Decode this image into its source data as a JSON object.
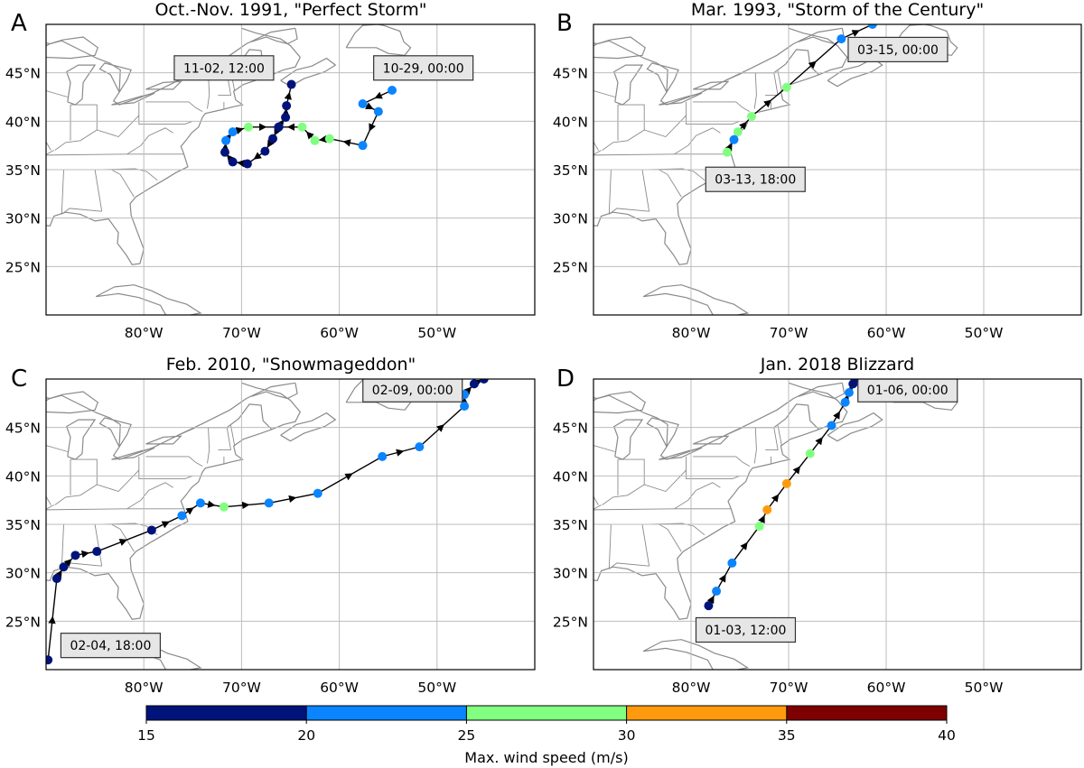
{
  "chart_data": [
    {
      "type": "scatter",
      "letter": "A",
      "title": "Oct.-Nov. 1991, \"Perfect Storm\"",
      "xlabel": "",
      "ylabel": "",
      "xlim": [
        -90,
        -40
      ],
      "ylim": [
        20,
        50
      ],
      "x_ticks": [
        -80,
        -70,
        -60,
        -50
      ],
      "x_tick_labels": [
        "80°W",
        "70°W",
        "60°W",
        "50°W"
      ],
      "y_ticks": [
        25,
        30,
        35,
        40,
        45
      ],
      "y_tick_labels": [
        "25°N",
        "30°N",
        "35°N",
        "40°N",
        "45°N"
      ],
      "grid": true,
      "track": [
        {
          "lon": -54.6,
          "lat": 43.2,
          "wind": 22
        },
        {
          "lon": -57.6,
          "lat": 41.8,
          "wind": 22
        },
        {
          "lon": -56.0,
          "lat": 41.0,
          "wind": 22
        },
        {
          "lon": -57.6,
          "lat": 37.5,
          "wind": 22
        },
        {
          "lon": -61.0,
          "lat": 38.2,
          "wind": 27
        },
        {
          "lon": -62.5,
          "lat": 38.0,
          "wind": 27
        },
        {
          "lon": -63.8,
          "lat": 39.4,
          "wind": 27
        },
        {
          "lon": -66.2,
          "lat": 39.4,
          "wind": 18
        },
        {
          "lon": -66.8,
          "lat": 38.2,
          "wind": 18
        },
        {
          "lon": -67.6,
          "lat": 36.9,
          "wind": 18
        },
        {
          "lon": -69.4,
          "lat": 35.6,
          "wind": 18
        },
        {
          "lon": -70.9,
          "lat": 35.8,
          "wind": 18
        },
        {
          "lon": -71.7,
          "lat": 36.8,
          "wind": 18
        },
        {
          "lon": -71.6,
          "lat": 38.0,
          "wind": 22
        },
        {
          "lon": -70.9,
          "lat": 38.9,
          "wind": 22
        },
        {
          "lon": -69.3,
          "lat": 39.4,
          "wind": 27
        },
        {
          "lon": -66.2,
          "lat": 39.4,
          "wind": 18
        },
        {
          "lon": -65.5,
          "lat": 40.4,
          "wind": 18
        },
        {
          "lon": -65.4,
          "lat": 41.6,
          "wind": 18
        },
        {
          "lon": -64.9,
          "lat": 43.8,
          "wind": 18
        }
      ],
      "annotations": [
        {
          "text": "11-02, 12:00",
          "lon": -71.8,
          "lat": 45.5
        },
        {
          "text": "10-29, 00:00",
          "lon": -51.4,
          "lat": 45.5
        }
      ]
    },
    {
      "type": "scatter",
      "letter": "B",
      "title": "Mar. 1993, \"Storm of the Century\"",
      "xlabel": "",
      "ylabel": "",
      "xlim": [
        -90,
        -40
      ],
      "ylim": [
        20,
        50
      ],
      "x_ticks": [
        -80,
        -70,
        -60,
        -50
      ],
      "x_tick_labels": [
        "80°W",
        "70°W",
        "60°W",
        "50°W"
      ],
      "y_ticks": [
        25,
        30,
        35,
        40,
        45
      ],
      "y_tick_labels": [
        "25°N",
        "30°N",
        "35°N",
        "40°N",
        "45°N"
      ],
      "grid": true,
      "track": [
        {
          "lon": -76.3,
          "lat": 36.8,
          "wind": 27
        },
        {
          "lon": -75.6,
          "lat": 38.1,
          "wind": 22
        },
        {
          "lon": -75.2,
          "lat": 38.9,
          "wind": 27
        },
        {
          "lon": -73.8,
          "lat": 40.5,
          "wind": 27
        },
        {
          "lon": -70.2,
          "lat": 43.5,
          "wind": 27
        },
        {
          "lon": -64.6,
          "lat": 48.5,
          "wind": 22
        },
        {
          "lon": -61.4,
          "lat": 50.0,
          "wind": 22
        }
      ],
      "annotations": [
        {
          "text": "03-15, 00:00",
          "lon": -58.8,
          "lat": 47.4
        },
        {
          "text": "03-13, 18:00",
          "lon": -73.4,
          "lat": 34.0
        }
      ]
    },
    {
      "type": "scatter",
      "letter": "C",
      "title": "Feb. 2010, \"Snowmageddon\"",
      "xlabel": "",
      "ylabel": "",
      "xlim": [
        -90,
        -40
      ],
      "ylim": [
        20,
        50
      ],
      "x_ticks": [
        -80,
        -70,
        -60,
        -50
      ],
      "x_tick_labels": [
        "80°W",
        "70°W",
        "60°W",
        "50°W"
      ],
      "y_ticks": [
        25,
        30,
        35,
        40,
        45
      ],
      "y_tick_labels": [
        "25°N",
        "30°N",
        "35°N",
        "40°N",
        "45°N"
      ],
      "grid": true,
      "track": [
        {
          "lon": -89.8,
          "lat": 21.0,
          "wind": 18
        },
        {
          "lon": -88.9,
          "lat": 29.4,
          "wind": 18
        },
        {
          "lon": -88.2,
          "lat": 30.6,
          "wind": 18
        },
        {
          "lon": -87.0,
          "lat": 31.8,
          "wind": 18
        },
        {
          "lon": -84.8,
          "lat": 32.2,
          "wind": 18
        },
        {
          "lon": -79.2,
          "lat": 34.4,
          "wind": 18
        },
        {
          "lon": -76.1,
          "lat": 35.9,
          "wind": 22
        },
        {
          "lon": -74.2,
          "lat": 37.2,
          "wind": 22
        },
        {
          "lon": -71.8,
          "lat": 36.8,
          "wind": 27
        },
        {
          "lon": -67.2,
          "lat": 37.2,
          "wind": 22
        },
        {
          "lon": -62.2,
          "lat": 38.2,
          "wind": 22
        },
        {
          "lon": -55.6,
          "lat": 42.0,
          "wind": 22
        },
        {
          "lon": -51.8,
          "lat": 43.0,
          "wind": 22
        },
        {
          "lon": -47.2,
          "lat": 47.2,
          "wind": 22
        },
        {
          "lon": -47.2,
          "lat": 48.4,
          "wind": 22
        },
        {
          "lon": -46.2,
          "lat": 49.5,
          "wind": 18
        },
        {
          "lon": -45.2,
          "lat": 50.0,
          "wind": 18
        }
      ],
      "annotations": [
        {
          "text": "02-09, 00:00",
          "lon": -52.5,
          "lat": 48.9
        },
        {
          "text": "02-04, 18:00",
          "lon": -83.4,
          "lat": 22.5
        }
      ]
    },
    {
      "type": "scatter",
      "letter": "D",
      "title": "Jan. 2018 Blizzard",
      "xlabel": "",
      "ylabel": "",
      "xlim": [
        -90,
        -40
      ],
      "ylim": [
        20,
        50
      ],
      "x_ticks": [
        -80,
        -70,
        -60,
        -50
      ],
      "x_tick_labels": [
        "80°W",
        "70°W",
        "60°W",
        "50°W"
      ],
      "y_ticks": [
        25,
        30,
        35,
        40,
        45
      ],
      "y_tick_labels": [
        "25°N",
        "30°N",
        "35°N",
        "40°N",
        "45°N"
      ],
      "grid": true,
      "track": [
        {
          "lon": -78.2,
          "lat": 26.6,
          "wind": 18
        },
        {
          "lon": -77.4,
          "lat": 28.1,
          "wind": 22
        },
        {
          "lon": -75.8,
          "lat": 31.0,
          "wind": 22
        },
        {
          "lon": -73.0,
          "lat": 34.8,
          "wind": 27
        },
        {
          "lon": -72.2,
          "lat": 36.5,
          "wind": 32
        },
        {
          "lon": -70.2,
          "lat": 39.2,
          "wind": 32
        },
        {
          "lon": -67.8,
          "lat": 42.3,
          "wind": 27
        },
        {
          "lon": -65.6,
          "lat": 45.2,
          "wind": 22
        },
        {
          "lon": -64.2,
          "lat": 47.6,
          "wind": 22
        },
        {
          "lon": -63.8,
          "lat": 48.6,
          "wind": 22
        },
        {
          "lon": -63.4,
          "lat": 49.5,
          "wind": 18
        },
        {
          "lon": -63.2,
          "lat": 50.0,
          "wind": 18
        }
      ],
      "annotations": [
        {
          "text": "01-06, 00:00",
          "lon": -57.8,
          "lat": 48.9
        },
        {
          "text": "01-03, 12:00",
          "lon": -74.4,
          "lat": 24.1
        }
      ]
    }
  ],
  "colorbar": {
    "label": "Max. wind speed (m/s)",
    "bins": [
      {
        "min": 15,
        "max": 20,
        "color": "#00137a"
      },
      {
        "min": 20,
        "max": 25,
        "color": "#0a84ff"
      },
      {
        "min": 25,
        "max": 30,
        "color": "#80ff80"
      },
      {
        "min": 30,
        "max": 35,
        "color": "#ff9a0e"
      },
      {
        "min": 35,
        "max": 40,
        "color": "#7f0000"
      }
    ],
    "ticks": [
      "15",
      "20",
      "25",
      "30",
      "35",
      "40"
    ]
  },
  "colors": {
    "grid": "#bdbdbd",
    "coast": "#8a8a8a",
    "track_line": "#000000",
    "label_box_fill": "#e6e6e6",
    "label_box_edge": "#333333"
  }
}
